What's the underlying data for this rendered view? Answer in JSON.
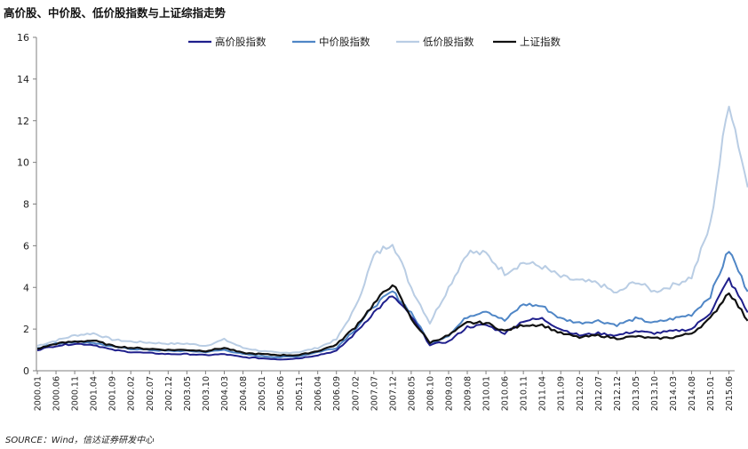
{
  "title": "高价股、中价股、低价股指数与上证综指走势",
  "source": "SOURCE：Wind，信达证券研发中心",
  "colors": {
    "high": "#1f1f8c",
    "mid": "#4f86c6",
    "low": "#b9cde4",
    "index": "#111111",
    "axis": "#7f7f7f"
  },
  "chart_data": {
    "type": "line",
    "title": "高价股、中价股、低价股指数与上证综指走势",
    "xlabel": "",
    "ylabel": "",
    "ylim": [
      0,
      16
    ],
    "yticks": [
      0,
      2,
      4,
      6,
      8,
      10,
      12,
      14,
      16
    ],
    "grid": false,
    "legend_position": "top",
    "x_tick_labels": [
      "2000.01",
      "2000.06",
      "2000.11",
      "2001.04",
      "2001.09",
      "2002.02",
      "2002.07",
      "2002.12",
      "2003.05",
      "2003.10",
      "2004.03",
      "2004.08",
      "2005.01",
      "2005.06",
      "2005.11",
      "2006.04",
      "2006.09",
      "2007.02",
      "2007.07",
      "2007.12",
      "2008.05",
      "2008.10",
      "2009.03",
      "2009.08",
      "2010.01",
      "2010.06",
      "2010.11",
      "2011.04",
      "2011.09",
      "2012.02",
      "2012.07",
      "2012.12",
      "2013.05",
      "2013.10",
      "2014.03",
      "2014.08",
      "2015.01",
      "2015.06"
    ],
    "x": [
      "2000.01",
      "2000.06",
      "2000.11",
      "2001.04",
      "2001.09",
      "2002.02",
      "2002.07",
      "2002.12",
      "2003.05",
      "2003.10",
      "2004.03",
      "2004.08",
      "2005.01",
      "2005.06",
      "2005.11",
      "2006.04",
      "2006.09",
      "2007.02",
      "2007.07",
      "2007.12",
      "2008.05",
      "2008.10",
      "2009.03",
      "2009.08",
      "2010.01",
      "2010.06",
      "2010.11",
      "2011.04",
      "2011.09",
      "2012.02",
      "2012.07",
      "2012.12",
      "2013.05",
      "2013.10",
      "2014.03",
      "2014.08",
      "2015.01",
      "2015.06",
      "2015.09"
    ],
    "series": [
      {
        "name": "高价股指数",
        "color_key": "high",
        "width": 2.0,
        "values": [
          1.0,
          1.2,
          1.3,
          1.25,
          1.0,
          0.9,
          0.85,
          0.8,
          0.8,
          0.75,
          0.8,
          0.65,
          0.6,
          0.55,
          0.6,
          0.75,
          0.95,
          1.8,
          2.8,
          3.6,
          2.6,
          1.25,
          1.4,
          2.1,
          2.2,
          1.8,
          2.4,
          2.5,
          2.0,
          1.7,
          1.8,
          1.7,
          1.9,
          1.8,
          1.9,
          2.0,
          2.8,
          4.4,
          2.8
        ]
      },
      {
        "name": "中价股指数",
        "color_key": "mid",
        "width": 2.0,
        "values": [
          1.1,
          1.3,
          1.4,
          1.35,
          1.15,
          1.05,
          1.0,
          0.95,
          0.95,
          0.9,
          1.0,
          0.8,
          0.7,
          0.65,
          0.7,
          0.9,
          1.1,
          2.0,
          3.1,
          3.8,
          2.8,
          1.3,
          1.7,
          2.6,
          2.9,
          2.4,
          3.2,
          3.1,
          2.5,
          2.3,
          2.4,
          2.2,
          2.5,
          2.3,
          2.5,
          2.7,
          3.6,
          5.8,
          3.8
        ]
      },
      {
        "name": "低价股指数",
        "color_key": "low",
        "width": 2.0,
        "values": [
          1.2,
          1.45,
          1.7,
          1.8,
          1.5,
          1.4,
          1.35,
          1.3,
          1.3,
          1.2,
          1.5,
          1.1,
          0.95,
          0.85,
          0.9,
          1.1,
          1.5,
          3.0,
          5.5,
          6.2,
          4.0,
          2.3,
          4.0,
          5.7,
          5.6,
          4.7,
          5.2,
          5.0,
          4.5,
          4.3,
          4.2,
          3.7,
          4.3,
          3.8,
          4.1,
          4.5,
          7.0,
          13.0,
          8.8
        ]
      },
      {
        "name": "上证指数",
        "color_key": "index",
        "width": 2.2,
        "values": [
          1.05,
          1.3,
          1.4,
          1.45,
          1.2,
          1.1,
          1.05,
          1.0,
          1.0,
          0.95,
          1.1,
          0.85,
          0.8,
          0.75,
          0.75,
          0.95,
          1.25,
          2.1,
          3.2,
          4.2,
          2.5,
          1.35,
          1.7,
          2.3,
          2.3,
          1.9,
          2.2,
          2.2,
          1.8,
          1.6,
          1.7,
          1.55,
          1.65,
          1.55,
          1.6,
          1.8,
          2.5,
          3.8,
          2.4
        ]
      }
    ]
  }
}
